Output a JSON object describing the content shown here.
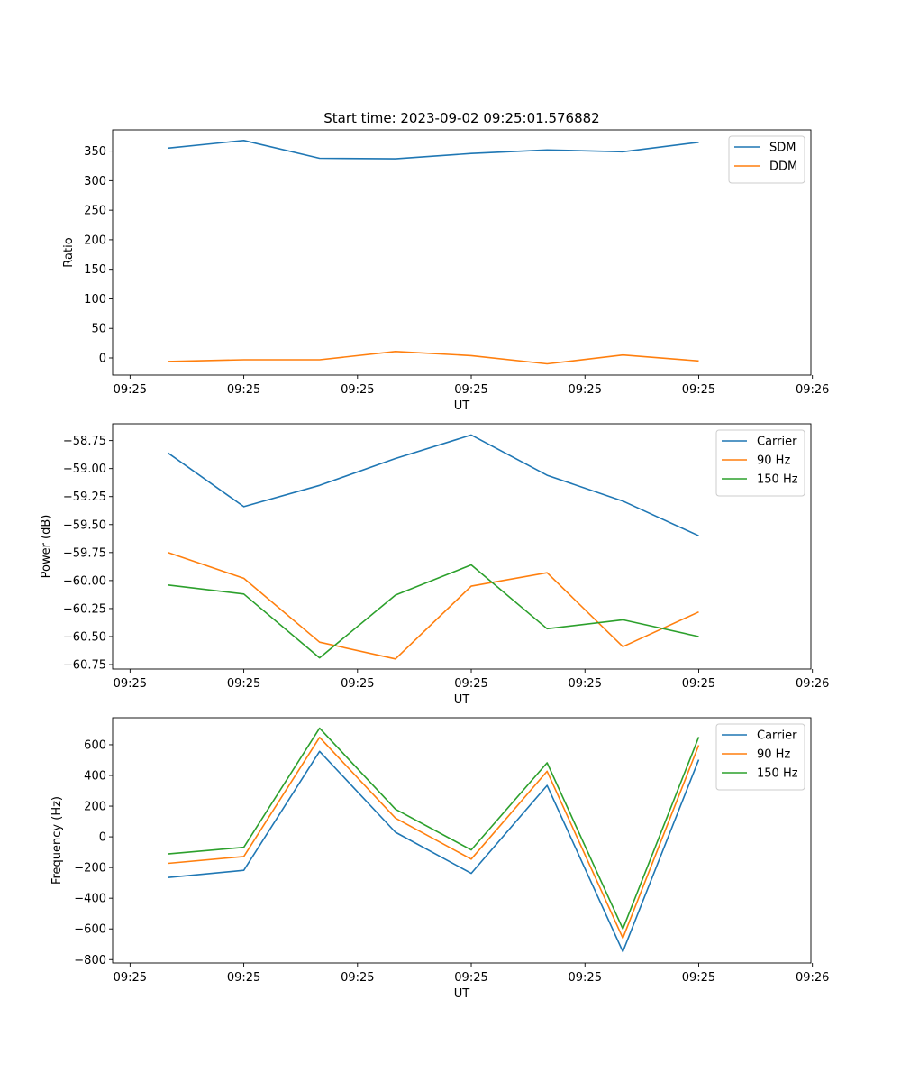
{
  "figure_title": "Start time: 2023-09-02 09:25:01.576882",
  "colors": {
    "blue": "#1f77b4",
    "orange": "#ff7f0e",
    "green": "#2ca02c"
  },
  "chart_data": [
    {
      "type": "line",
      "title": "Start time: 2023-09-02 09:25:01.576882",
      "xlabel": "UT",
      "ylabel": "Ratio",
      "x_tick_labels": [
        "09:25",
        "09:25",
        "09:25",
        "09:25",
        "09:25",
        "09:25",
        "09:26"
      ],
      "x": [
        1,
        2,
        3,
        4,
        5,
        6,
        7,
        8
      ],
      "xlim": [
        0.27,
        9.48
      ],
      "x_ticks": [
        0.5,
        2.0,
        3.5,
        5.0,
        6.5,
        8.0,
        9.5
      ],
      "ylim": [
        -29,
        386
      ],
      "y_ticks": [
        0,
        50,
        100,
        150,
        200,
        250,
        300,
        350
      ],
      "y_tick_labels": [
        "0",
        "50",
        "100",
        "150",
        "200",
        "250",
        "300",
        "350"
      ],
      "legend_position": "top-right",
      "series": [
        {
          "name": "SDM",
          "color": "#1f77b4",
          "values": [
            355,
            368,
            338,
            337,
            346,
            352,
            349,
            365
          ]
        },
        {
          "name": "DDM",
          "color": "#ff7f0e",
          "values": [
            -6,
            -3,
            -3,
            11,
            4,
            -10,
            5,
            -5
          ]
        }
      ]
    },
    {
      "type": "line",
      "title": "",
      "xlabel": "UT",
      "ylabel": "Power (dB)",
      "x_tick_labels": [
        "09:25",
        "09:25",
        "09:25",
        "09:25",
        "09:25",
        "09:25",
        "09:26"
      ],
      "x": [
        1,
        2,
        3,
        4,
        5,
        6,
        7,
        8
      ],
      "xlim": [
        0.27,
        9.48
      ],
      "x_ticks": [
        0.5,
        2.0,
        3.5,
        5.0,
        6.5,
        8.0,
        9.5
      ],
      "ylim": [
        -60.79,
        -58.6
      ],
      "y_ticks": [
        -60.75,
        -60.5,
        -60.25,
        -60.0,
        -59.75,
        -59.5,
        -59.25,
        -59.0,
        -58.75
      ],
      "y_tick_labels": [
        "−60.75",
        "−60.50",
        "−60.25",
        "−60.00",
        "−59.75",
        "−59.50",
        "−59.25",
        "−59.00",
        "−58.75"
      ],
      "legend_position": "top-right",
      "series": [
        {
          "name": "Carrier",
          "color": "#1f77b4",
          "values": [
            -58.86,
            -59.34,
            -59.15,
            -58.91,
            -58.7,
            -59.06,
            -59.29,
            -59.6
          ]
        },
        {
          "name": "90 Hz",
          "color": "#ff7f0e",
          "values": [
            -59.75,
            -59.98,
            -60.55,
            -60.7,
            -60.05,
            -59.93,
            -60.59,
            -60.28
          ]
        },
        {
          "name": "150 Hz",
          "color": "#2ca02c",
          "values": [
            -60.04,
            -60.12,
            -60.69,
            -60.13,
            -59.86,
            -60.43,
            -60.35,
            -60.5
          ]
        }
      ]
    },
    {
      "type": "line",
      "title": "",
      "xlabel": "UT",
      "ylabel": "Frequency (Hz)",
      "x_tick_labels": [
        "09:25",
        "09:25",
        "09:25",
        "09:25",
        "09:25",
        "09:25",
        "09:26"
      ],
      "x": [
        1,
        2,
        3,
        4,
        5,
        6,
        7,
        8
      ],
      "xlim": [
        0.27,
        9.48
      ],
      "x_ticks": [
        0.5,
        2.0,
        3.5,
        5.0,
        6.5,
        8.0,
        9.5
      ],
      "ylim": [
        -822,
        776
      ],
      "y_ticks": [
        -800,
        -600,
        -400,
        -200,
        0,
        200,
        400,
        600
      ],
      "y_tick_labels": [
        "−800",
        "−600",
        "−400",
        "−200",
        "0",
        "200",
        "400",
        "600"
      ],
      "legend_position": "top-right",
      "series": [
        {
          "name": "Carrier",
          "color": "#1f77b4",
          "values": [
            -265,
            -218,
            557,
            30,
            -238,
            335,
            -748,
            502
          ]
        },
        {
          "name": "90 Hz",
          "color": "#ff7f0e",
          "values": [
            -173,
            -128,
            648,
            122,
            -145,
            427,
            -660,
            597
          ]
        },
        {
          "name": "150 Hz",
          "color": "#2ca02c",
          "values": [
            -112,
            -68,
            708,
            180,
            -85,
            482,
            -600,
            650
          ]
        }
      ]
    }
  ]
}
